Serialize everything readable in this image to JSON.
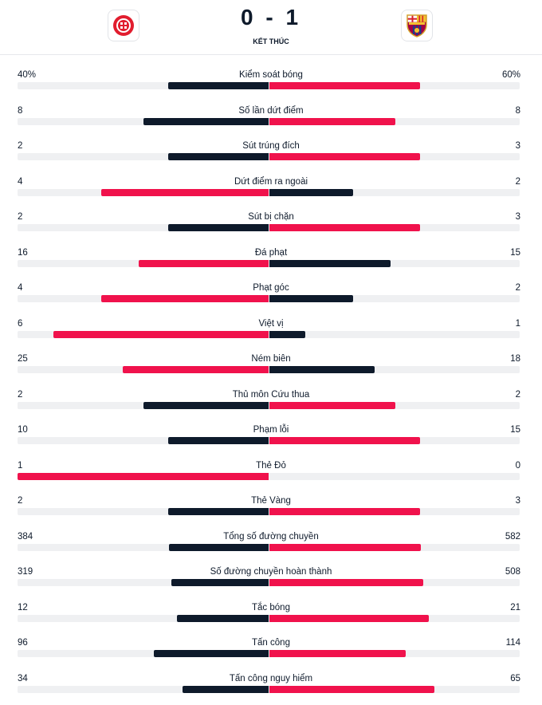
{
  "match": {
    "score": "0 - 1",
    "status": "KẾT THÚC",
    "home_icon": "girona-crest-icon",
    "away_icon": "barcelona-crest-icon"
  },
  "colors": {
    "winner": "#f0124c",
    "loser": "#0e1a2b",
    "track": "#eff0f2"
  },
  "stats": [
    {
      "label": "Kiểm soát bóng",
      "home": "40%",
      "away": "60%",
      "home_val": 40,
      "away_val": 60
    },
    {
      "label": "Số lần dứt điểm",
      "home": "8",
      "away": "8",
      "home_val": 8,
      "away_val": 8
    },
    {
      "label": "Sút trúng đích",
      "home": "2",
      "away": "3",
      "home_val": 2,
      "away_val": 3
    },
    {
      "label": "Dứt điểm ra ngoài",
      "home": "4",
      "away": "2",
      "home_val": 4,
      "away_val": 2
    },
    {
      "label": "Sút bị chặn",
      "home": "2",
      "away": "3",
      "home_val": 2,
      "away_val": 3
    },
    {
      "label": "Đá phạt",
      "home": "16",
      "away": "15",
      "home_val": 16,
      "away_val": 15
    },
    {
      "label": "Phạt góc",
      "home": "4",
      "away": "2",
      "home_val": 4,
      "away_val": 2
    },
    {
      "label": "Việt vị",
      "home": "6",
      "away": "1",
      "home_val": 6,
      "away_val": 1
    },
    {
      "label": "Ném biên",
      "home": "25",
      "away": "18",
      "home_val": 25,
      "away_val": 18
    },
    {
      "label": "Thủ môn Cứu thua",
      "home": "2",
      "away": "2",
      "home_val": 2,
      "away_val": 2
    },
    {
      "label": "Phạm lỗi",
      "home": "10",
      "away": "15",
      "home_val": 10,
      "away_val": 15
    },
    {
      "label": "Thẻ Đỏ",
      "home": "1",
      "away": "0",
      "home_val": 1,
      "away_val": 0
    },
    {
      "label": "Thẻ Vàng",
      "home": "2",
      "away": "3",
      "home_val": 2,
      "away_val": 3
    },
    {
      "label": "Tổng số đường chuyền",
      "home": "384",
      "away": "582",
      "home_val": 384,
      "away_val": 582
    },
    {
      "label": "Số đường chuyền hoàn thành",
      "home": "319",
      "away": "508",
      "home_val": 319,
      "away_val": 508
    },
    {
      "label": "Tắc bóng",
      "home": "12",
      "away": "21",
      "home_val": 12,
      "away_val": 21
    },
    {
      "label": "Tấn công",
      "home": "96",
      "away": "114",
      "home_val": 96,
      "away_val": 114
    },
    {
      "label": "Tấn công nguy hiểm",
      "home": "34",
      "away": "65",
      "home_val": 34,
      "away_val": 65
    }
  ]
}
